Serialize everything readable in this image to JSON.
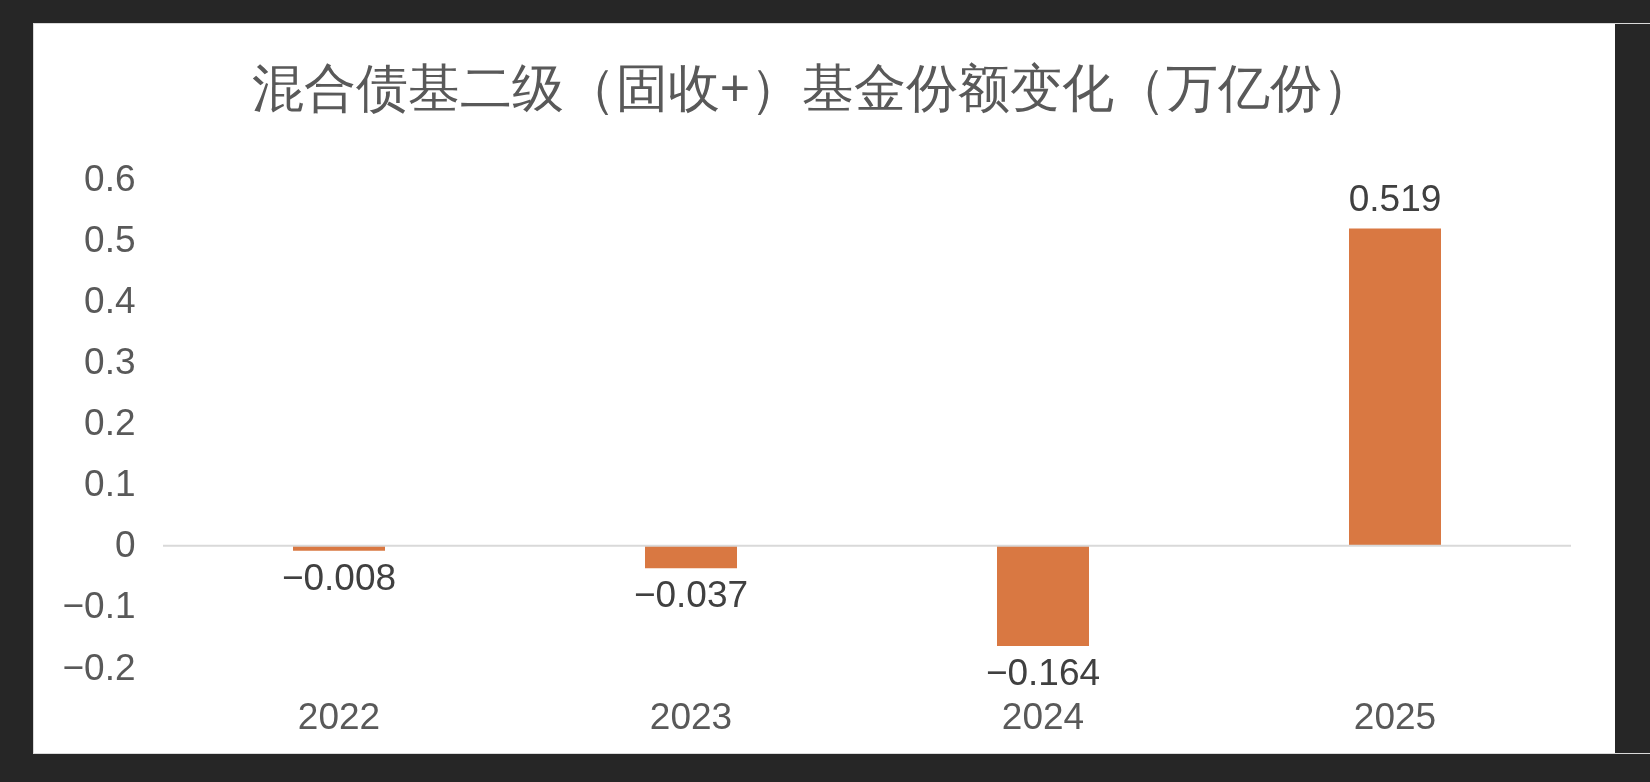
{
  "chart_data": {
    "type": "bar",
    "title": "混合债基二级（固收+）基金份额变化（万亿份）",
    "categories": [
      "2022",
      "2023",
      "2024",
      "2025"
    ],
    "values": [
      -0.008,
      -0.037,
      -0.164,
      0.519
    ],
    "color": "#d97842",
    "value_labels": [
      "−0.008",
      "−0.037",
      "−0.164",
      "0.519"
    ],
    "ylim": [
      -0.2,
      0.6
    ],
    "yticks": [
      {
        "value": -0.2,
        "label": "−0.2"
      },
      {
        "value": -0.1,
        "label": "−0.1"
      },
      0,
      0.1,
      0.2,
      0.3,
      0.4,
      0.5,
      0.6
    ]
  }
}
